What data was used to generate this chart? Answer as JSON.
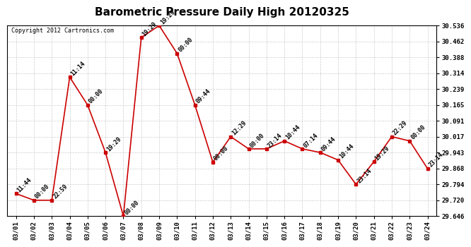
{
  "title": "Barometric Pressure Daily High 20120325",
  "copyright": "Copyright 2012 Cartronics.com",
  "x_labels": [
    "03/01",
    "03/02",
    "03/03",
    "03/04",
    "03/05",
    "03/06",
    "03/07",
    "03/08",
    "03/09",
    "03/10",
    "03/11",
    "03/12",
    "03/13",
    "03/14",
    "03/15",
    "03/16",
    "03/17",
    "03/18",
    "03/19",
    "03/20",
    "03/21",
    "03/22",
    "03/23",
    "03/24"
  ],
  "y_values": [
    29.751,
    29.72,
    29.72,
    30.295,
    30.165,
    29.943,
    29.646,
    30.48,
    30.536,
    30.406,
    30.165,
    29.898,
    30.017,
    29.96,
    29.96,
    29.997,
    29.96,
    29.943,
    29.908,
    29.794,
    29.9,
    30.017,
    29.997,
    29.868
  ],
  "time_labels": [
    "11:44",
    "00:00",
    "22:59",
    "11:14",
    "00:00",
    "19:29",
    "00:00",
    "19:29",
    "19:29",
    "00:00",
    "09:44",
    "00:00",
    "12:29",
    "00:00",
    "23:14",
    "10:44",
    "07:14",
    "09:44",
    "10:44",
    "23:14",
    "19:29",
    "22:29",
    "00:00",
    "23:14"
  ],
  "ylim_min": 29.646,
  "ylim_max": 30.536,
  "yticks": [
    29.646,
    29.72,
    29.794,
    29.868,
    29.943,
    30.017,
    30.091,
    30.165,
    30.239,
    30.314,
    30.388,
    30.462,
    30.536
  ],
  "line_color": "#cc0000",
  "marker_color": "#cc0000",
  "bg_color": "#ffffff",
  "grid_color": "#cccccc",
  "title_fontsize": 11,
  "label_fontsize": 6.5,
  "annotation_fontsize": 6,
  "copyright_fontsize": 6
}
